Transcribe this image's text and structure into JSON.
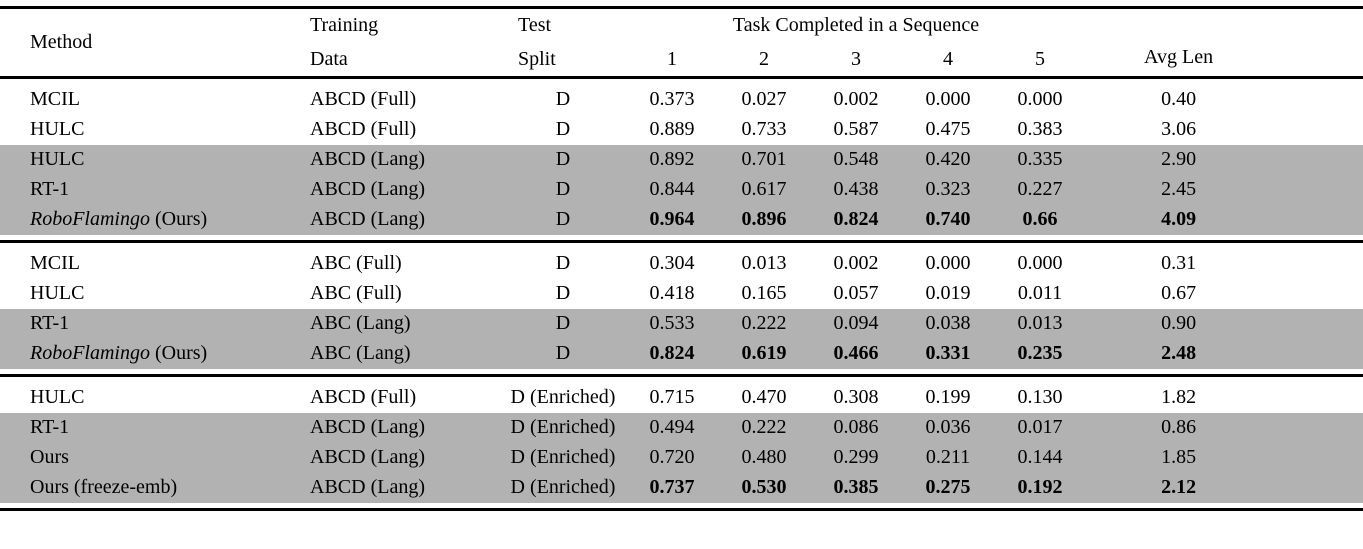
{
  "page": {
    "background": "#ffffff",
    "row_highlight": "#b2b2b2",
    "text_color": "#000000"
  },
  "table": {
    "header": {
      "method": "Method",
      "training_line1": "Training",
      "training_line2": "Data",
      "test_line1": "Test",
      "test_line2": "Split",
      "task_group": "Task Completed in a Sequence",
      "task_columns": [
        "1",
        "2",
        "3",
        "4",
        "5"
      ],
      "avg_len": "Avg Len"
    },
    "sections": [
      {
        "rows": [
          {
            "method": "MCIL",
            "training": "ABCD (Full)",
            "split": "D",
            "values": [
              "0.373",
              "0.027",
              "0.002",
              "0.000",
              "0.000"
            ],
            "avg": "0.40",
            "gray": false,
            "bold": false
          },
          {
            "method": "HULC",
            "training": "ABCD (Full)",
            "split": "D",
            "values": [
              "0.889",
              "0.733",
              "0.587",
              "0.475",
              "0.383"
            ],
            "avg": "3.06",
            "gray": false,
            "bold": false
          },
          {
            "method": "HULC",
            "training": "ABCD (Lang)",
            "split": "D",
            "values": [
              "0.892",
              "0.701",
              "0.548",
              "0.420",
              "0.335"
            ],
            "avg": "2.90",
            "gray": true,
            "bold": false
          },
          {
            "method": "RT-1",
            "training": "ABCD (Lang)",
            "split": "D",
            "values": [
              "0.844",
              "0.617",
              "0.438",
              "0.323",
              "0.227"
            ],
            "avg": "2.45",
            "gray": true,
            "bold": false
          },
          {
            "method_italic": "RoboFlamingo",
            "method_rest": "(Ours)",
            "training": "ABCD (Lang)",
            "split": "D",
            "values": [
              "0.964",
              "0.896",
              "0.824",
              "0.740",
              "0.66"
            ],
            "avg": "4.09",
            "gray": true,
            "bold": true
          }
        ]
      },
      {
        "rows": [
          {
            "method": "MCIL",
            "training": "ABC (Full)",
            "split": "D",
            "values": [
              "0.304",
              "0.013",
              "0.002",
              "0.000",
              "0.000"
            ],
            "avg": "0.31",
            "gray": false,
            "bold": false
          },
          {
            "method": "HULC",
            "training": "ABC (Full)",
            "split": "D",
            "values": [
              "0.418",
              "0.165",
              "0.057",
              "0.019",
              "0.011"
            ],
            "avg": "0.67",
            "gray": false,
            "bold": false
          },
          {
            "method": "RT-1",
            "training": "ABC (Lang)",
            "split": "D",
            "values": [
              "0.533",
              "0.222",
              "0.094",
              "0.038",
              "0.013"
            ],
            "avg": "0.90",
            "gray": true,
            "bold": false
          },
          {
            "method_italic": "RoboFlamingo",
            "method_rest": "(Ours)",
            "training": "ABC (Lang)",
            "split": "D",
            "values": [
              "0.824",
              "0.619",
              "0.466",
              "0.331",
              "0.235"
            ],
            "avg": "2.48",
            "gray": true,
            "bold": true
          }
        ]
      },
      {
        "rows": [
          {
            "method": "HULC",
            "training": "ABCD (Full)",
            "split": "D (Enriched)",
            "values": [
              "0.715",
              "0.470",
              "0.308",
              "0.199",
              "0.130"
            ],
            "avg": "1.82",
            "gray": false,
            "bold": false
          },
          {
            "method": "RT-1",
            "training": "ABCD (Lang)",
            "split": "D (Enriched)",
            "values": [
              "0.494",
              "0.222",
              "0.086",
              "0.036",
              "0.017"
            ],
            "avg": "0.86",
            "gray": true,
            "bold": false
          },
          {
            "method": "Ours",
            "training": "ABCD (Lang)",
            "split": "D (Enriched)",
            "values": [
              "0.720",
              "0.480",
              "0.299",
              "0.211",
              "0.144"
            ],
            "avg": "1.85",
            "gray": true,
            "bold": false
          },
          {
            "method": "Ours (freeze-emb)",
            "training": "ABCD (Lang)",
            "split": "D (Enriched)",
            "values": [
              "0.737",
              "0.530",
              "0.385",
              "0.275",
              "0.192"
            ],
            "avg": "2.12",
            "gray": true,
            "bold": true
          }
        ]
      }
    ]
  }
}
